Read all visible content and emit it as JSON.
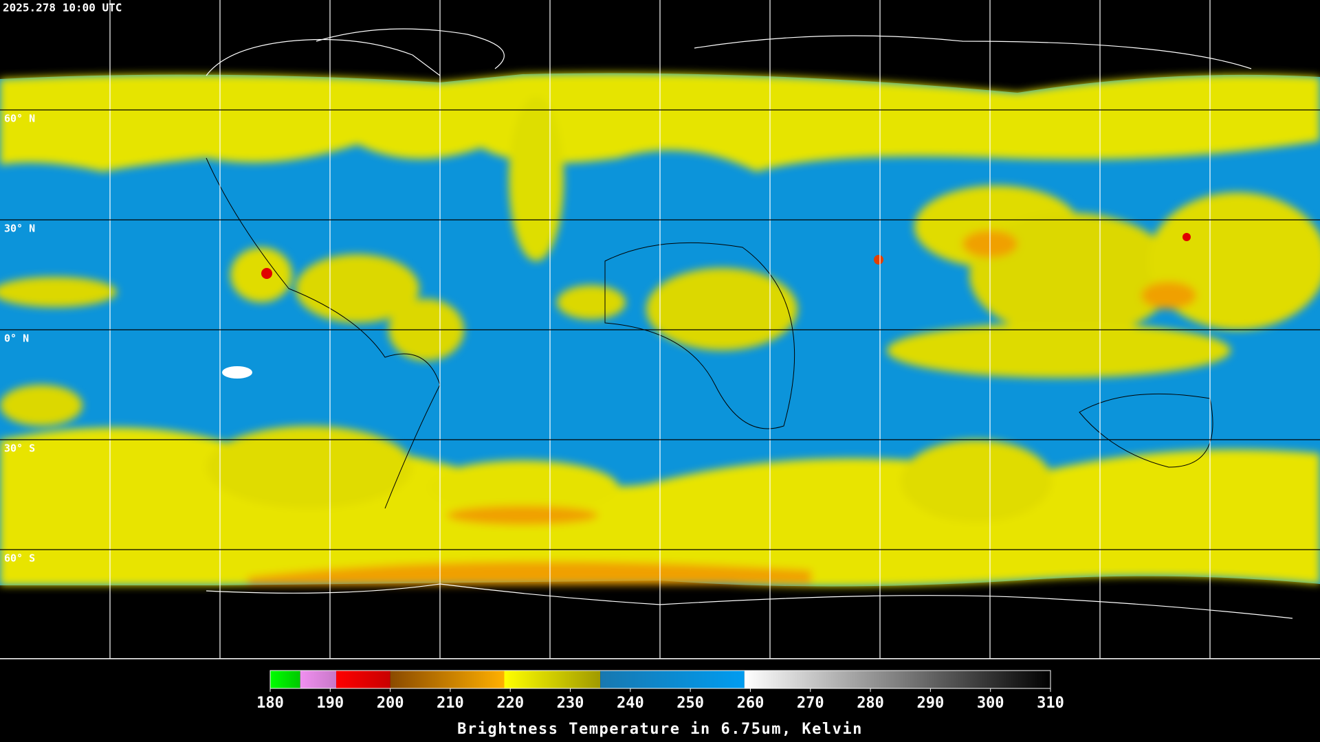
{
  "header": {
    "timestamp": "2025.278 10:00 UTC"
  },
  "lat_lines": [
    {
      "value": 60,
      "label": "60° N"
    },
    {
      "value": 30,
      "label": "30° N"
    },
    {
      "value": 0,
      "label": "0° N"
    },
    {
      "value": -30,
      "label": "30° S"
    },
    {
      "value": -60,
      "label": "60° S"
    }
  ],
  "colorbar": {
    "title": "Brightness Temperature in 6.75um, Kelvin",
    "range": [
      180,
      310
    ],
    "ticks": [
      180,
      190,
      200,
      210,
      220,
      230,
      240,
      250,
      260,
      270,
      280,
      290,
      300,
      310
    ],
    "segments": [
      {
        "from": 180,
        "to": 185,
        "colors": [
          "#00ff00",
          "#00c800"
        ]
      },
      {
        "from": 185,
        "to": 191,
        "colors": [
          "#f090f0",
          "#c878c8"
        ]
      },
      {
        "from": 191,
        "to": 200,
        "colors": [
          "#ff0000",
          "#c80000"
        ]
      },
      {
        "from": 200,
        "to": 219,
        "colors": [
          "#8a4a00",
          "#ffb000"
        ]
      },
      {
        "from": 219,
        "to": 235,
        "colors": [
          "#ffff00",
          "#a09a00"
        ]
      },
      {
        "from": 235,
        "to": 259,
        "colors": [
          "#1878b0",
          "#009cf0"
        ]
      },
      {
        "from": 259,
        "to": 310,
        "colors": [
          "#ffffff",
          "#000000"
        ]
      }
    ]
  }
}
